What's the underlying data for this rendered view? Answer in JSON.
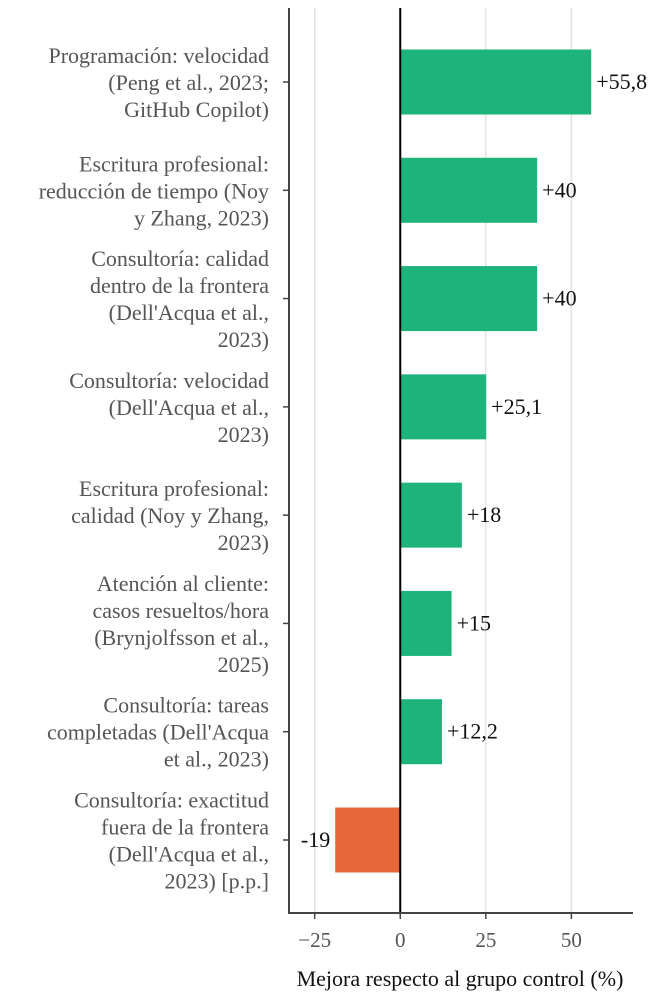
{
  "chart_data": {
    "type": "bar",
    "orientation": "horizontal",
    "categories": [
      [
        "Programación: velocidad",
        "(Peng et al., 2023;",
        "GitHub Copilot)"
      ],
      [
        "Escritura profesional:",
        "reducción de tiempo (Noy",
        "y Zhang, 2023)"
      ],
      [
        "Consultoría: calidad",
        "dentro de la frontera",
        "(Dell'Acqua et al.,",
        "2023)"
      ],
      [
        "Consultoría: velocidad",
        "(Dell'Acqua et al.,",
        "2023)"
      ],
      [
        "Escritura profesional:",
        "calidad (Noy y Zhang,",
        "2023)"
      ],
      [
        "Atención al cliente:",
        "casos resueltos/hora",
        "(Brynjolfsson et al.,",
        "2025)"
      ],
      [
        "Consultoría: tareas",
        "completadas (Dell'Acqua",
        "et al., 2023)"
      ],
      [
        "Consultoría: exactitud",
        "fuera de la frontera",
        "(Dell'Acqua et al.,",
        "2023) [p.p.]"
      ]
    ],
    "values": [
      55.8,
      40,
      40,
      25.1,
      18,
      15,
      12.2,
      -19
    ],
    "value_labels": [
      "+55,8",
      "+40",
      "+40",
      "+25,1",
      "+18",
      "+15",
      "+12,2",
      "-19"
    ],
    "xlabel": "Mejora respecto al grupo control (%)",
    "xlim": [
      -32.5,
      68
    ],
    "xticks": [
      -25,
      0,
      25,
      50
    ],
    "xtick_labels": [
      "−25",
      "0",
      "25",
      "50"
    ],
    "grid": "vertical",
    "colors": {
      "positive": "#1db37a",
      "negative": "#e8673a",
      "grid": "#e3e3e3",
      "axis": "#444444",
      "zero_line": "#000000"
    }
  }
}
